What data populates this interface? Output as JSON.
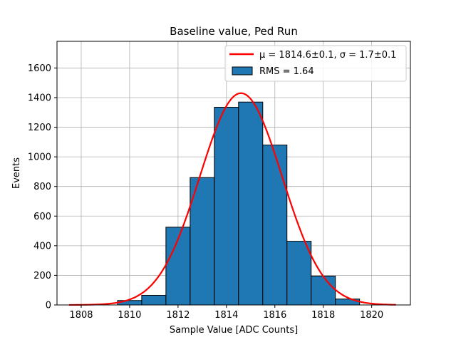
{
  "chart_data": {
    "type": "bar",
    "title": "Baseline value, Ped Run",
    "xlabel": "Sample Value [ADC Counts]",
    "ylabel": "Events",
    "xlim": [
      1807.0,
      1821.6
    ],
    "ylim": [
      0,
      1780
    ],
    "xticks": [
      1808,
      1810,
      1812,
      1814,
      1816,
      1818,
      1820
    ],
    "yticks": [
      0,
      200,
      400,
      600,
      800,
      1000,
      1200,
      1400,
      1600
    ],
    "grid": true,
    "legend_position": "top-right",
    "histogram": {
      "name": "RMS = 1.64",
      "color": "#1f77b4",
      "edge_color": "#000000",
      "bin_edges": [
        1809.5,
        1810.5,
        1811.5,
        1812.5,
        1813.5,
        1814.5,
        1815.5,
        1816.5,
        1817.5,
        1818.5,
        1819.5
      ],
      "counts": [
        30,
        65,
        525,
        860,
        1335,
        1370,
        1080,
        430,
        195,
        40
      ]
    },
    "fit": {
      "name": "μ = 1814.6±0.1, σ = 1.7±0.1",
      "color": "#ff0000",
      "mu": 1814.6,
      "sigma": 1.7,
      "amplitude": 1430,
      "x_range": [
        1807.5,
        1821.0
      ]
    }
  }
}
